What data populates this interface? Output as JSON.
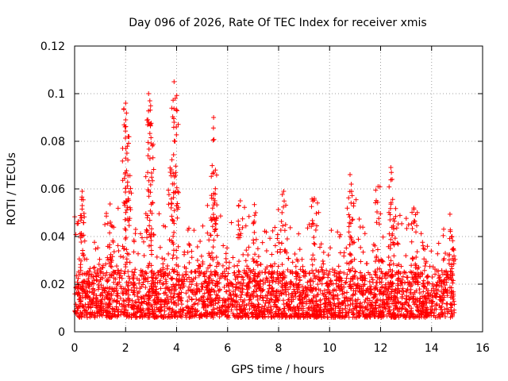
{
  "chart_data": {
    "type": "scatter",
    "title": "Day 096 of 2026, Rate Of TEC Index for receiver xmis",
    "xlabel": "GPS time / hours",
    "ylabel": "ROTI / TECUs",
    "xlim": [
      0,
      16
    ],
    "ylim": [
      0,
      0.12
    ],
    "xticks": [
      0,
      2,
      4,
      6,
      8,
      10,
      12,
      14,
      16
    ],
    "xtick_labels": [
      "0",
      "2",
      "4",
      "6",
      "8",
      "10",
      "12",
      "14",
      "16"
    ],
    "yticks": [
      0,
      0.02,
      0.04,
      0.06,
      0.08,
      0.1,
      0.12
    ],
    "ytick_labels": [
      "0",
      "0.02",
      "0.04",
      "0.06",
      "0.08",
      "0.1",
      "0.12"
    ],
    "grid": true,
    "marker": "+",
    "color": "#ff0000",
    "series": [
      {
        "name": "ROTI",
        "x_range": [
          0,
          14.9
        ],
        "baseline_range": [
          0.006,
          0.025
        ],
        "peaks": [
          {
            "x": 0.3,
            "y": 0.059
          },
          {
            "x": 0.3,
            "y": 0.053
          },
          {
            "x": 1.4,
            "y": 0.046
          },
          {
            "x": 2.0,
            "y": 0.096
          },
          {
            "x": 2.0,
            "y": 0.089
          },
          {
            "x": 2.1,
            "y": 0.082
          },
          {
            "x": 2.05,
            "y": 0.075
          },
          {
            "x": 2.9,
            "y": 0.1
          },
          {
            "x": 2.95,
            "y": 0.097
          },
          {
            "x": 2.9,
            "y": 0.088
          },
          {
            "x": 3.0,
            "y": 0.079
          },
          {
            "x": 3.9,
            "y": 0.105
          },
          {
            "x": 3.95,
            "y": 0.098
          },
          {
            "x": 3.9,
            "y": 0.088
          },
          {
            "x": 3.8,
            "y": 0.068
          },
          {
            "x": 5.45,
            "y": 0.09
          },
          {
            "x": 5.45,
            "y": 0.067
          },
          {
            "x": 5.5,
            "y": 0.055
          },
          {
            "x": 6.5,
            "y": 0.055
          },
          {
            "x": 7.1,
            "y": 0.05
          },
          {
            "x": 8.2,
            "y": 0.059
          },
          {
            "x": 9.4,
            "y": 0.056
          },
          {
            "x": 10.8,
            "y": 0.066
          },
          {
            "x": 10.85,
            "y": 0.062
          },
          {
            "x": 11.9,
            "y": 0.061
          },
          {
            "x": 12.4,
            "y": 0.069
          },
          {
            "x": 12.45,
            "y": 0.064
          },
          {
            "x": 13.3,
            "y": 0.052
          },
          {
            "x": 14.8,
            "y": 0.04
          }
        ]
      }
    ]
  }
}
